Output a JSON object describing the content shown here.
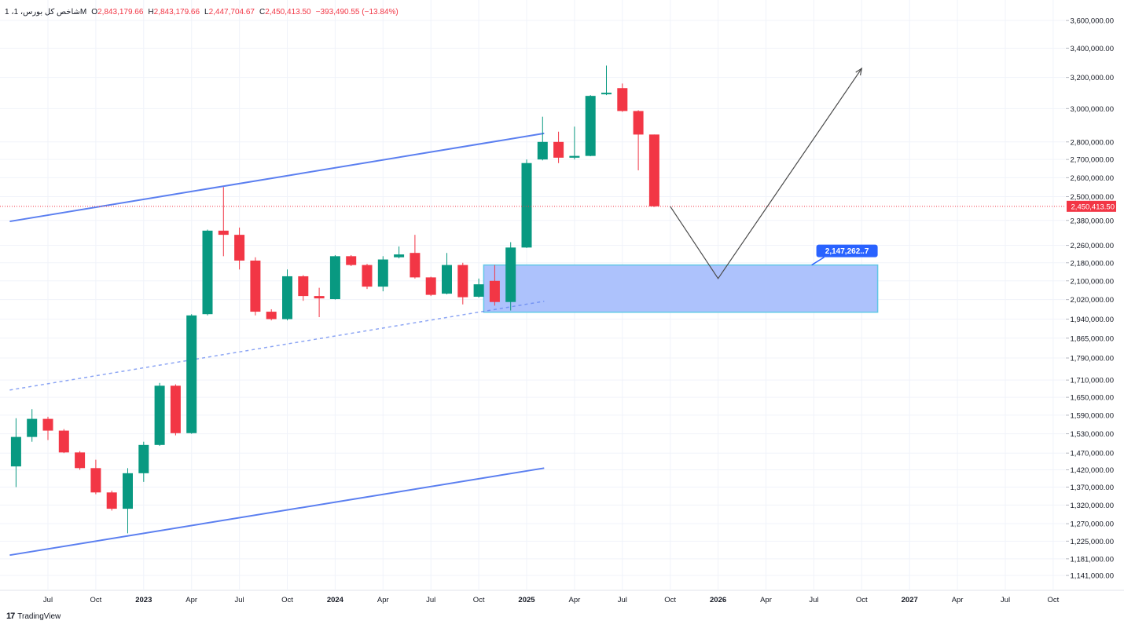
{
  "header": {
    "symbol": "1 ،شاخص کل بورس، 1M",
    "open_label": "O",
    "open": "2,843,179.66",
    "high_label": "H",
    "high": "2,843,179.66",
    "low_label": "L",
    "low": "2,447,704.67",
    "close_label": "C",
    "close": "2,450,413.50",
    "change": "−393,490.55 (−13.84%)"
  },
  "branding": {
    "logo_text": "TradingView",
    "logo_icon": "tradingview-logo-icon"
  },
  "colors": {
    "up": "#089981",
    "down": "#f23645",
    "channel": "#5b7ff0",
    "zone_fill": "#a9bffc",
    "zone_border": "#5fc7e6",
    "label_bg": "#2962ff"
  },
  "chart_data": {
    "type": "candlestick",
    "interval": "1M",
    "price_scale": "log",
    "ylim": [
      1110000,
      3720000
    ],
    "y_ticks": [
      "3,600,000.00",
      "3,400,000.00",
      "3,200,000.00",
      "3,000,000.00",
      "2,800,000.00",
      "2,700,000.00",
      "2,600,000.00",
      "2,500,000.00",
      "2,380,000.00",
      "2,260,000.00",
      "2,180,000.00",
      "2,100,000.00",
      "2,020,000.00",
      "1,940,000.00",
      "1,865,000.00",
      "1,790,000.00",
      "1,710,000.00",
      "1,650,000.00",
      "1,590,000.00",
      "1,530,000.00",
      "1,470,000.00",
      "1,420,000.00",
      "1,370,000.00",
      "1,320,000.00",
      "1,270,000.00",
      "1,225,000.00",
      "1,181,000.00",
      "1,141,000.00"
    ],
    "x_ticks": [
      {
        "label": "Jul",
        "date": "2022-07",
        "bold": false
      },
      {
        "label": "Oct",
        "date": "2022-10",
        "bold": false
      },
      {
        "label": "2023",
        "date": "2023-01",
        "bold": true
      },
      {
        "label": "Apr",
        "date": "2023-04",
        "bold": false
      },
      {
        "label": "Jul",
        "date": "2023-07",
        "bold": false
      },
      {
        "label": "Oct",
        "date": "2023-10",
        "bold": false
      },
      {
        "label": "2024",
        "date": "2024-01",
        "bold": true
      },
      {
        "label": "Apr",
        "date": "2024-04",
        "bold": false
      },
      {
        "label": "Jul",
        "date": "2024-07",
        "bold": false
      },
      {
        "label": "Oct",
        "date": "2024-10",
        "bold": false
      },
      {
        "label": "2025",
        "date": "2025-01",
        "bold": true
      },
      {
        "label": "Apr",
        "date": "2025-04",
        "bold": false
      },
      {
        "label": "Jul",
        "date": "2025-07",
        "bold": false
      },
      {
        "label": "Oct",
        "date": "2025-10",
        "bold": false
      },
      {
        "label": "2026",
        "date": "2026-01",
        "bold": true
      },
      {
        "label": "Apr",
        "date": "2026-04",
        "bold": false
      },
      {
        "label": "Jul",
        "date": "2026-07",
        "bold": false
      },
      {
        "label": "Oct",
        "date": "2026-10",
        "bold": false
      },
      {
        "label": "2027",
        "date": "2027-01",
        "bold": true
      },
      {
        "label": "Apr",
        "date": "2027-04",
        "bold": false
      },
      {
        "label": "Jul",
        "date": "2027-07",
        "bold": false
      },
      {
        "label": "Oct",
        "date": "2027-10",
        "bold": false
      }
    ],
    "candles": [
      {
        "date": "2022-05",
        "o": 1430000,
        "h": 1580000,
        "l": 1370000,
        "c": 1520000
      },
      {
        "date": "2022-06",
        "o": 1520000,
        "h": 1610000,
        "l": 1505000,
        "c": 1578000
      },
      {
        "date": "2022-07",
        "o": 1578000,
        "h": 1585000,
        "l": 1510000,
        "c": 1540000
      },
      {
        "date": "2022-08",
        "o": 1540000,
        "h": 1545000,
        "l": 1470000,
        "c": 1472000
      },
      {
        "date": "2022-09",
        "o": 1472000,
        "h": 1476000,
        "l": 1420000,
        "c": 1425000
      },
      {
        "date": "2022-10",
        "o": 1425000,
        "h": 1450000,
        "l": 1350000,
        "c": 1355000
      },
      {
        "date": "2022-11",
        "o": 1355000,
        "h": 1360000,
        "l": 1305000,
        "c": 1310000
      },
      {
        "date": "2022-12",
        "o": 1310000,
        "h": 1425000,
        "l": 1245000,
        "c": 1410000
      },
      {
        "date": "2023-01",
        "o": 1410000,
        "h": 1505000,
        "l": 1385000,
        "c": 1495000
      },
      {
        "date": "2023-02",
        "o": 1495000,
        "h": 1700000,
        "l": 1492000,
        "c": 1690000
      },
      {
        "date": "2023-03",
        "o": 1690000,
        "h": 1695000,
        "l": 1525000,
        "c": 1532000
      },
      {
        "date": "2023-04",
        "o": 1532000,
        "h": 1960000,
        "l": 1530000,
        "c": 1955000
      },
      {
        "date": "2023-05",
        "o": 1960000,
        "h": 2335000,
        "l": 1955000,
        "c": 2330000
      },
      {
        "date": "2023-06",
        "o": 2330000,
        "h": 2550000,
        "l": 2210000,
        "c": 2310000
      },
      {
        "date": "2023-07",
        "o": 2310000,
        "h": 2345000,
        "l": 2150000,
        "c": 2190000
      },
      {
        "date": "2023-08",
        "o": 2190000,
        "h": 2205000,
        "l": 1955000,
        "c": 1970000
      },
      {
        "date": "2023-09",
        "o": 1970000,
        "h": 1980000,
        "l": 1935000,
        "c": 1940000
      },
      {
        "date": "2023-10",
        "o": 1940000,
        "h": 2150000,
        "l": 1935000,
        "c": 2120000
      },
      {
        "date": "2023-11",
        "o": 2120000,
        "h": 2125000,
        "l": 2015000,
        "c": 2035000
      },
      {
        "date": "2023-12",
        "o": 2035000,
        "h": 2070000,
        "l": 1948000,
        "c": 2025000
      },
      {
        "date": "2024-01",
        "o": 2022000,
        "h": 2215000,
        "l": 2020000,
        "c": 2210000
      },
      {
        "date": "2024-02",
        "o": 2210000,
        "h": 2215000,
        "l": 2165000,
        "c": 2170000
      },
      {
        "date": "2024-03",
        "o": 2170000,
        "h": 2175000,
        "l": 2065000,
        "c": 2075000
      },
      {
        "date": "2024-04",
        "o": 2075000,
        "h": 2210000,
        "l": 2055000,
        "c": 2195000
      },
      {
        "date": "2024-05",
        "o": 2205000,
        "h": 2255000,
        "l": 2200000,
        "c": 2218000
      },
      {
        "date": "2024-06",
        "o": 2225000,
        "h": 2310000,
        "l": 2110000,
        "c": 2115000
      },
      {
        "date": "2024-07",
        "o": 2115000,
        "h": 2118000,
        "l": 2035000,
        "c": 2040000
      },
      {
        "date": "2024-08",
        "o": 2045000,
        "h": 2225000,
        "l": 2042000,
        "c": 2170000
      },
      {
        "date": "2024-09",
        "o": 2170000,
        "h": 2180000,
        "l": 2000000,
        "c": 2030000
      },
      {
        "date": "2024-10",
        "o": 2032000,
        "h": 2110000,
        "l": 2028000,
        "c": 2085000
      },
      {
        "date": "2024-11",
        "o": 2100000,
        "h": 2170000,
        "l": 1995000,
        "c": 2010000
      },
      {
        "date": "2024-12",
        "o": 2010000,
        "h": 2275000,
        "l": 1975000,
        "c": 2250000
      },
      {
        "date": "2025-01",
        "o": 2250000,
        "h": 2700000,
        "l": 2248000,
        "c": 2680000
      },
      {
        "date": "2025-02",
        "o": 2700000,
        "h": 2950000,
        "l": 2695000,
        "c": 2800000
      },
      {
        "date": "2025-03",
        "o": 2800000,
        "h": 2860000,
        "l": 2680000,
        "c": 2710000
      },
      {
        "date": "2025-04",
        "o": 2710000,
        "h": 2890000,
        "l": 2700000,
        "c": 2720000
      },
      {
        "date": "2025-05",
        "o": 2720000,
        "h": 3085000,
        "l": 2718000,
        "c": 3080000
      },
      {
        "date": "2025-06",
        "o": 3090000,
        "h": 3280000,
        "l": 3085000,
        "c": 3100000
      },
      {
        "date": "2025-07",
        "o": 3130000,
        "h": 3160000,
        "l": 2980000,
        "c": 2985000
      },
      {
        "date": "2025-08",
        "o": 2985000,
        "h": 2990000,
        "l": 2640000,
        "c": 2843000
      },
      {
        "date": "2025-09",
        "o": 2843179.66,
        "h": 2843179.66,
        "l": 2447704.67,
        "c": 2450413.5
      }
    ],
    "last_price": 2450413.5,
    "last_price_label": "2,450,413.50",
    "drawings": {
      "channel_upper": {
        "from": {
          "date": "2022-05",
          "price": 2375000
        },
        "to": {
          "date": "2025-02",
          "price": 2850000
        }
      },
      "channel_lower": {
        "from": {
          "date": "2022-05",
          "price": 1190000
        },
        "to": {
          "date": "2025-02",
          "price": 1425000
        }
      },
      "channel_mid": {
        "from": {
          "date": "2022-05",
          "price": 1675000
        },
        "to": {
          "date": "2025-02",
          "price": 2013000
        }
      },
      "zone": {
        "from_date": "2024-11",
        "to_date": "2026-11",
        "top": 2170000,
        "bottom": 1968000
      },
      "zone_label": "2,147,262..7",
      "projection": [
        {
          "date": "2025-10",
          "price": 2450000
        },
        {
          "date": "2026-01",
          "price": 2110000
        },
        {
          "date": "2026-10",
          "price": 3260000
        }
      ]
    }
  }
}
